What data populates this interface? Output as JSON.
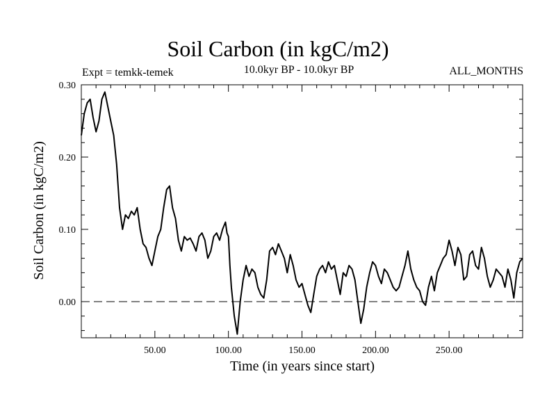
{
  "header": {
    "title": "Soil Carbon (in kgC/m2)",
    "expt": "Expt = temkk-temek",
    "period": "10.0kyr BP - 10.0kyr BP",
    "months": "ALL_MONTHS"
  },
  "chart_data": {
    "type": "line",
    "title": "Soil Carbon (in kgC/m2)",
    "xlabel": "Time (in years since start)",
    "ylabel": "Soil Carbon (in kgC/m2)",
    "xlim": [
      0,
      300
    ],
    "ylim": [
      -0.05,
      0.3
    ],
    "xticks": [
      50,
      100,
      150,
      200,
      250
    ],
    "xtick_labels": [
      "50.00",
      "100.00",
      "150.00",
      "200.00",
      "250.00"
    ],
    "yticks": [
      0,
      0.1,
      0.2,
      0.3
    ],
    "ytick_labels": [
      "0.00",
      "0.10",
      "0.20",
      "0.30"
    ],
    "reference_line": {
      "y": 0,
      "style": "dashed"
    },
    "series": [
      {
        "name": "Soil Carbon",
        "x": [
          0,
          2,
          4,
          6,
          8,
          10,
          12,
          14,
          16,
          18,
          20,
          22,
          24,
          26,
          28,
          30,
          32,
          34,
          36,
          38,
          40,
          42,
          44,
          46,
          48,
          50,
          52,
          54,
          56,
          58,
          60,
          62,
          64,
          66,
          68,
          70,
          72,
          74,
          76,
          78,
          80,
          82,
          84,
          86,
          88,
          90,
          92,
          94,
          96,
          98,
          99,
          100,
          101,
          102,
          104,
          106,
          108,
          110,
          112,
          114,
          116,
          118,
          120,
          122,
          124,
          126,
          128,
          130,
          132,
          134,
          136,
          138,
          140,
          142,
          144,
          146,
          148,
          150,
          152,
          154,
          156,
          158,
          160,
          162,
          164,
          166,
          168,
          170,
          172,
          174,
          176,
          178,
          180,
          182,
          184,
          186,
          188,
          190,
          192,
          194,
          196,
          198,
          200,
          202,
          204,
          206,
          208,
          210,
          212,
          214,
          216,
          218,
          220,
          222,
          224,
          226,
          228,
          230,
          232,
          234,
          236,
          238,
          240,
          242,
          244,
          246,
          248,
          250,
          252,
          254,
          256,
          258,
          260,
          262,
          264,
          266,
          268,
          270,
          272,
          274,
          276,
          278,
          280,
          282,
          284,
          286,
          288,
          290,
          292,
          294,
          296,
          298,
          300
        ],
        "values": [
          0.23,
          0.26,
          0.275,
          0.28,
          0.255,
          0.235,
          0.25,
          0.28,
          0.29,
          0.27,
          0.25,
          0.23,
          0.19,
          0.13,
          0.1,
          0.12,
          0.115,
          0.125,
          0.12,
          0.13,
          0.1,
          0.08,
          0.075,
          0.06,
          0.05,
          0.07,
          0.09,
          0.1,
          0.13,
          0.155,
          0.16,
          0.13,
          0.115,
          0.085,
          0.07,
          0.09,
          0.085,
          0.088,
          0.08,
          0.07,
          0.09,
          0.095,
          0.085,
          0.06,
          0.07,
          0.09,
          0.095,
          0.085,
          0.1,
          0.11,
          0.095,
          0.09,
          0.05,
          0.02,
          -0.02,
          -0.045,
          0.0,
          0.03,
          0.05,
          0.035,
          0.045,
          0.04,
          0.02,
          0.01,
          0.005,
          0.03,
          0.07,
          0.075,
          0.065,
          0.08,
          0.07,
          0.06,
          0.04,
          0.065,
          0.05,
          0.03,
          0.02,
          0.025,
          0.01,
          -0.005,
          -0.015,
          0.01,
          0.035,
          0.045,
          0.05,
          0.04,
          0.055,
          0.045,
          0.05,
          0.03,
          0.01,
          0.04,
          0.035,
          0.05,
          0.045,
          0.03,
          0.0,
          -0.03,
          -0.01,
          0.02,
          0.04,
          0.055,
          0.05,
          0.035,
          0.025,
          0.045,
          0.04,
          0.03,
          0.02,
          0.015,
          0.02,
          0.035,
          0.05,
          0.07,
          0.045,
          0.03,
          0.02,
          0.015,
          0.0,
          -0.005,
          0.02,
          0.035,
          0.015,
          0.04,
          0.05,
          0.06,
          0.065,
          0.085,
          0.07,
          0.05,
          0.075,
          0.065,
          0.03,
          0.035,
          0.065,
          0.07,
          0.05,
          0.045,
          0.075,
          0.06,
          0.035,
          0.02,
          0.03,
          0.045,
          0.04,
          0.035,
          0.02,
          0.045,
          0.03,
          0.005,
          0.04,
          0.055,
          0.06
        ]
      }
    ]
  }
}
